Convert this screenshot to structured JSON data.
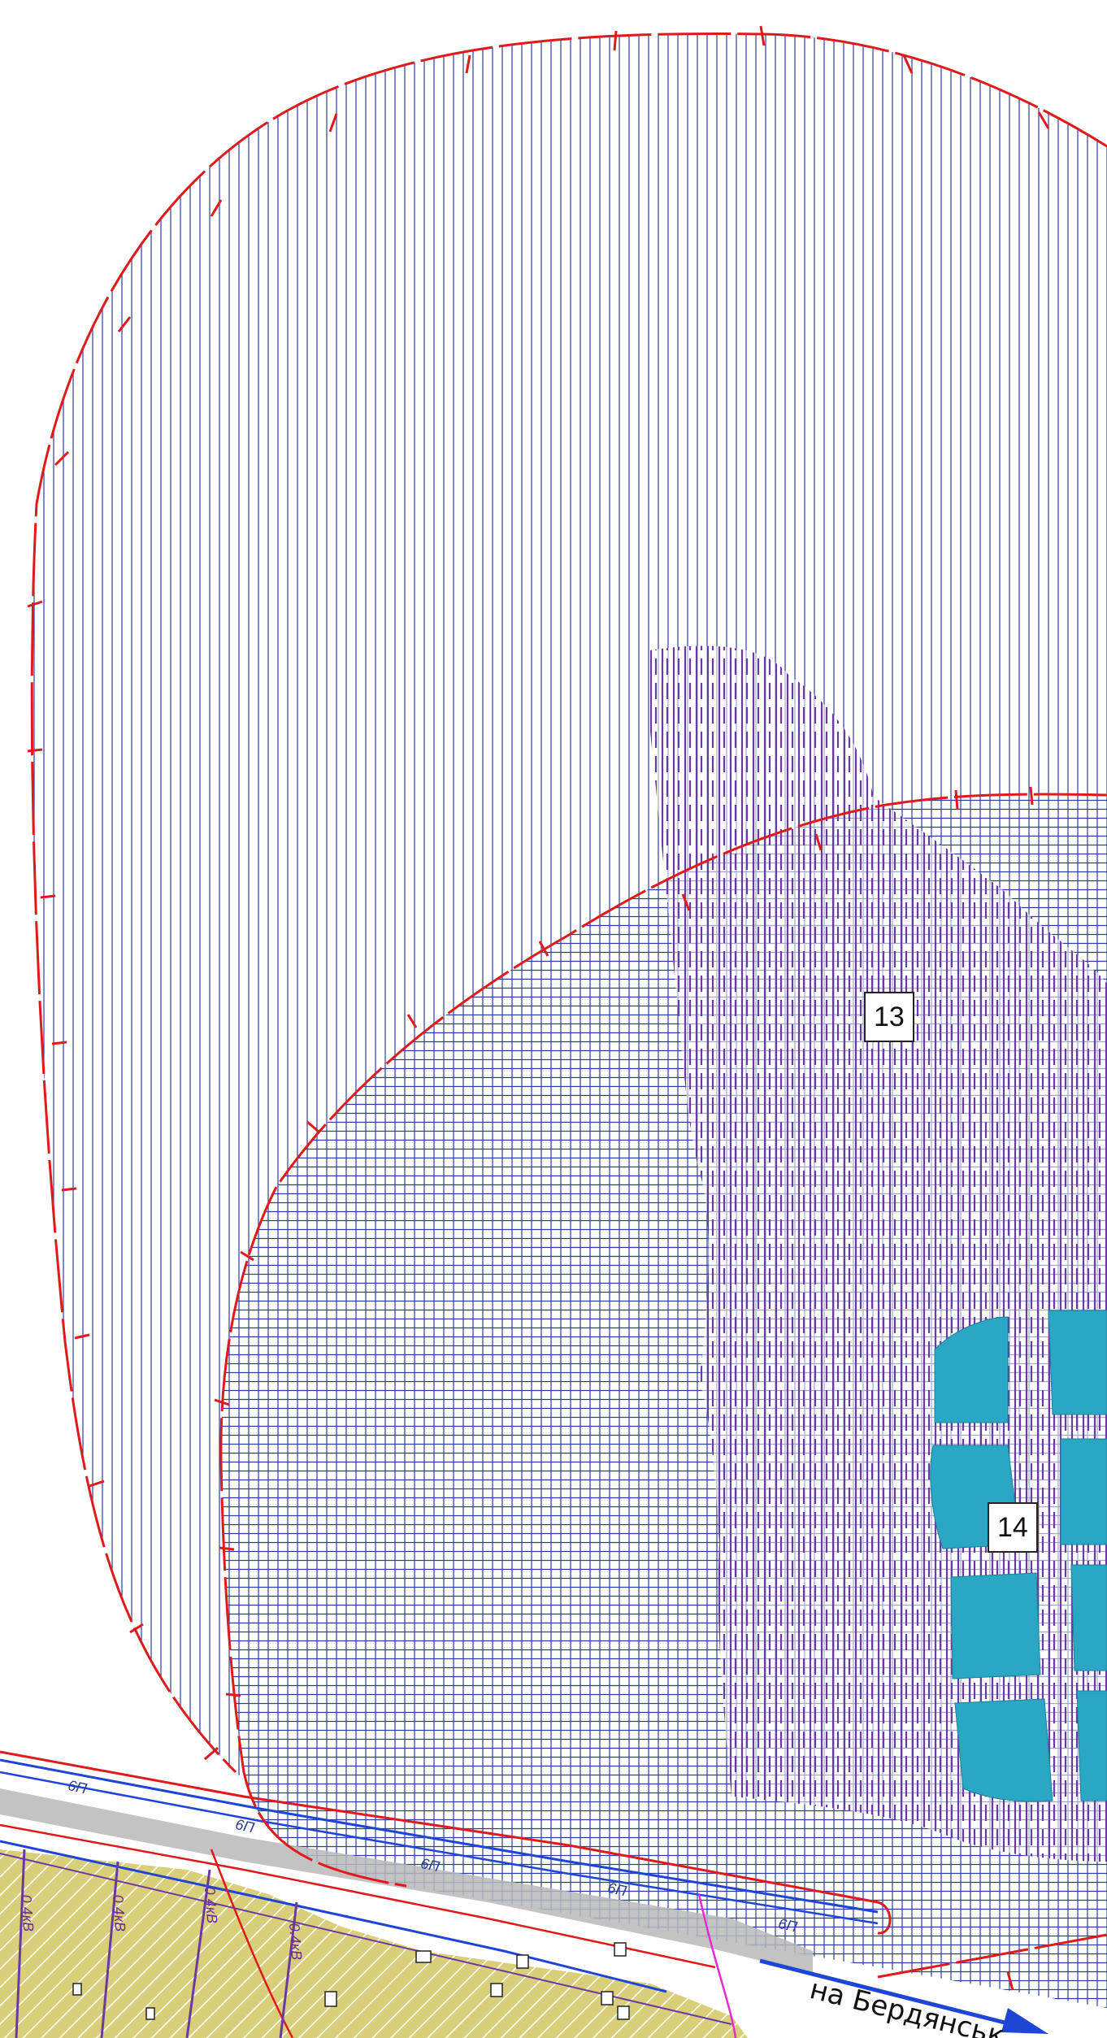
{
  "map": {
    "zones": [
      {
        "id": "13",
        "label": "13"
      },
      {
        "id": "14",
        "label": "14"
      }
    ],
    "road_label": "на Бердянськ",
    "line_marks": [
      "6П",
      "6П",
      "6П",
      "6П",
      "6П"
    ],
    "cable_marks": [
      "0.4кВ",
      "0.4кВ",
      "0.4кВ",
      "0.4кВ"
    ]
  },
  "colors": {
    "boundary_red": "#e01a1a",
    "hatch_blue": "#2b3f9a",
    "hatch_purple": "#6b3aa0",
    "water_cyan": "#2aa7c4",
    "yellow_zone": "#d4c870",
    "road_gray": "#b8b8b8",
    "arrow_blue": "#1f45d6"
  }
}
